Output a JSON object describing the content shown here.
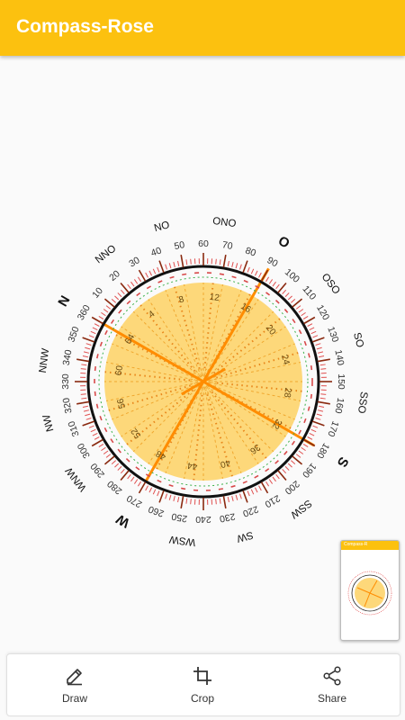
{
  "app": {
    "title": "Compass-Rose"
  },
  "compass": {
    "directions": [
      {
        "label": "N",
        "angle": -60,
        "bold": true
      },
      {
        "label": "NNO",
        "angle": -37.5,
        "bold": false
      },
      {
        "label": "NO",
        "angle": -15,
        "bold": false
      },
      {
        "label": "ONO",
        "angle": 7.5,
        "bold": false
      },
      {
        "label": "O",
        "angle": 30,
        "bold": true
      },
      {
        "label": "OSO",
        "angle": 52.5,
        "bold": false
      },
      {
        "label": "SO",
        "angle": 75,
        "bold": false
      },
      {
        "label": "SSO",
        "angle": 97.5,
        "bold": false
      },
      {
        "label": "S",
        "angle": 120,
        "bold": true
      },
      {
        "label": "SSW",
        "angle": 142.5,
        "bold": false
      },
      {
        "label": "SW",
        "angle": 165,
        "bold": false
      },
      {
        "label": "WSW",
        "angle": 187.5,
        "bold": false
      },
      {
        "label": "W",
        "angle": 210,
        "bold": true
      },
      {
        "label": "WNW",
        "angle": 232.5,
        "bold": false
      },
      {
        "label": "NW",
        "angle": 255,
        "bold": false
      },
      {
        "label": "NNW",
        "angle": 277.5,
        "bold": false
      }
    ],
    "degree_labels": [
      "10",
      "20",
      "30",
      "40",
      "50",
      "60",
      "70",
      "80",
      "90",
      "100",
      "110",
      "120",
      "130",
      "140",
      "150",
      "160",
      "170",
      "180",
      "190",
      "200",
      "210",
      "220",
      "230",
      "240",
      "250",
      "260",
      "270",
      "280",
      "290",
      "300",
      "310",
      "320",
      "330",
      "340",
      "350",
      "360"
    ],
    "degree_offset": -60,
    "inner_labels": [
      "4",
      "8",
      "12",
      "16",
      "20",
      "24",
      "28",
      "32",
      "36",
      "40",
      "44",
      "48",
      "52",
      "56",
      "60",
      "64"
    ],
    "inner_offset": -60,
    "colors": {
      "disk": "#fdd87a",
      "ring": "#111111",
      "tick": "#e05050",
      "spoke": "#ff8c00",
      "accent": "#f47a20"
    }
  },
  "thumbnail": {
    "title": "Compass-R"
  },
  "bottom_bar": {
    "draw_label": "Draw",
    "crop_label": "Crop",
    "share_label": "Share"
  }
}
